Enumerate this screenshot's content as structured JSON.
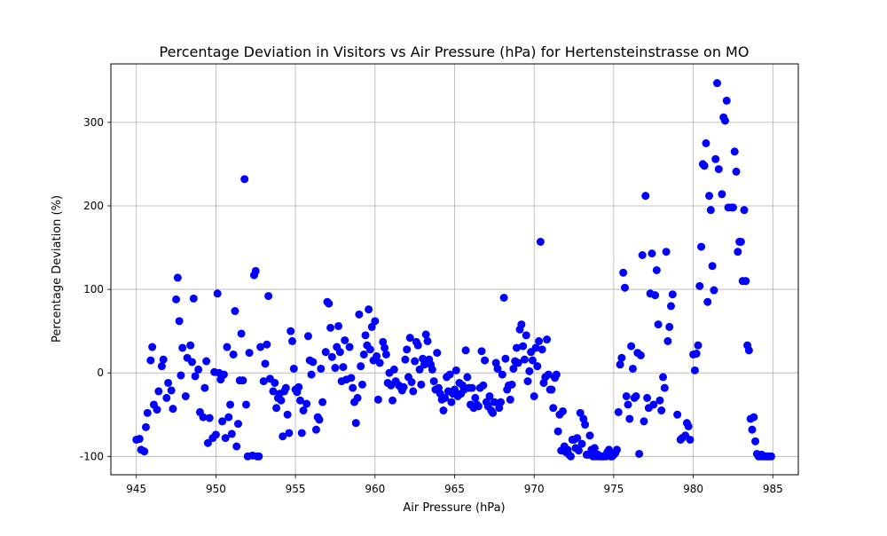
{
  "chart_data": {
    "type": "scatter",
    "title": "Percentage Deviation in Visitors vs Air Pressure (hPa) for Hertensteinstrasse on MO",
    "xlabel": "Air Pressure (hPa)",
    "ylabel": "Percentage Deviation (%)",
    "xlim": [
      943.4,
      986.6
    ],
    "ylim": [
      -122,
      370
    ],
    "xticks": [
      945,
      950,
      955,
      960,
      965,
      970,
      975,
      980,
      985
    ],
    "yticks": [
      -100,
      0,
      100,
      200,
      300
    ],
    "grid": true,
    "color": "#0000ff",
    "points": [
      [
        945.0,
        -80
      ],
      [
        945.2,
        -79
      ],
      [
        945.3,
        -92
      ],
      [
        945.5,
        -94
      ],
      [
        945.6,
        -65
      ],
      [
        945.7,
        -48
      ],
      [
        945.9,
        15
      ],
      [
        946.0,
        31
      ],
      [
        946.1,
        -38
      ],
      [
        946.3,
        -44
      ],
      [
        946.4,
        -22
      ],
      [
        946.6,
        8
      ],
      [
        946.7,
        16
      ],
      [
        946.9,
        -30
      ],
      [
        947.0,
        -12
      ],
      [
        947.2,
        -21
      ],
      [
        947.3,
        -43
      ],
      [
        947.5,
        88
      ],
      [
        947.6,
        114
      ],
      [
        947.7,
        62
      ],
      [
        947.8,
        -3
      ],
      [
        947.9,
        30
      ],
      [
        948.1,
        -28
      ],
      [
        948.2,
        18
      ],
      [
        948.4,
        33
      ],
      [
        948.5,
        13
      ],
      [
        948.6,
        89
      ],
      [
        948.7,
        -4
      ],
      [
        948.9,
        4
      ],
      [
        949.0,
        -47
      ],
      [
        949.2,
        -53
      ],
      [
        949.3,
        -18
      ],
      [
        949.4,
        14
      ],
      [
        949.5,
        -84
      ],
      [
        949.6,
        -54
      ],
      [
        949.8,
        -78
      ],
      [
        949.9,
        1
      ],
      [
        950.0,
        -74
      ],
      [
        950.1,
        95
      ],
      [
        950.2,
        0
      ],
      [
        950.3,
        -8
      ],
      [
        950.4,
        -58
      ],
      [
        950.5,
        -2
      ],
      [
        950.6,
        -78
      ],
      [
        950.7,
        31
      ],
      [
        950.8,
        -53
      ],
      [
        950.9,
        -38
      ],
      [
        951.0,
        -73
      ],
      [
        951.1,
        22
      ],
      [
        951.2,
        74
      ],
      [
        951.3,
        -88
      ],
      [
        951.4,
        -61
      ],
      [
        951.5,
        -9
      ],
      [
        951.6,
        47
      ],
      [
        951.7,
        -9
      ],
      [
        951.8,
        232
      ],
      [
        951.9,
        -38
      ],
      [
        952.0,
        -100
      ],
      [
        952.1,
        24
      ],
      [
        952.3,
        -99
      ],
      [
        952.4,
        117
      ],
      [
        952.5,
        122
      ],
      [
        952.6,
        -100
      ],
      [
        952.7,
        -100
      ],
      [
        952.8,
        31
      ],
      [
        953.0,
        -10
      ],
      [
        953.1,
        11
      ],
      [
        953.2,
        34
      ],
      [
        953.3,
        92
      ],
      [
        953.4,
        -7
      ],
      [
        953.6,
        -22
      ],
      [
        953.7,
        -12
      ],
      [
        953.8,
        -42
      ],
      [
        953.9,
        -30
      ],
      [
        954.0,
        -25
      ],
      [
        954.1,
        -33
      ],
      [
        954.2,
        -76
      ],
      [
        954.3,
        -22
      ],
      [
        954.4,
        -18
      ],
      [
        954.5,
        -50
      ],
      [
        954.6,
        -72
      ],
      [
        954.7,
        50
      ],
      [
        954.8,
        38
      ],
      [
        954.9,
        5
      ],
      [
        955.0,
        -20
      ],
      [
        955.1,
        -23
      ],
      [
        955.2,
        -17
      ],
      [
        955.3,
        -33
      ],
      [
        955.4,
        -72
      ],
      [
        955.5,
        -45
      ],
      [
        955.7,
        -37
      ],
      [
        955.8,
        44
      ],
      [
        955.9,
        15
      ],
      [
        956.0,
        -2
      ],
      [
        956.1,
        13
      ],
      [
        956.3,
        -68
      ],
      [
        956.4,
        -53
      ],
      [
        956.5,
        -56
      ],
      [
        956.6,
        5
      ],
      [
        956.7,
        -35
      ],
      [
        956.9,
        25
      ],
      [
        957.0,
        85
      ],
      [
        957.1,
        83
      ],
      [
        957.2,
        54
      ],
      [
        957.3,
        19
      ],
      [
        957.5,
        6
      ],
      [
        957.6,
        31
      ],
      [
        957.7,
        56
      ],
      [
        957.8,
        25
      ],
      [
        957.9,
        -10
      ],
      [
        958.0,
        7
      ],
      [
        958.1,
        39
      ],
      [
        958.2,
        -8
      ],
      [
        958.4,
        31
      ],
      [
        958.5,
        -6
      ],
      [
        958.6,
        -18
      ],
      [
        958.7,
        -35
      ],
      [
        958.8,
        -60
      ],
      [
        958.9,
        -30
      ],
      [
        959.0,
        70
      ],
      [
        959.1,
        8
      ],
      [
        959.2,
        -14
      ],
      [
        959.3,
        22
      ],
      [
        959.4,
        45
      ],
      [
        959.5,
        33
      ],
      [
        959.6,
        76
      ],
      [
        959.7,
        28
      ],
      [
        959.8,
        55
      ],
      [
        959.9,
        15
      ],
      [
        960.0,
        62
      ],
      [
        960.1,
        20
      ],
      [
        960.2,
        -32
      ],
      [
        960.3,
        12
      ],
      [
        960.5,
        37
      ],
      [
        960.6,
        30
      ],
      [
        960.7,
        22
      ],
      [
        960.8,
        -12
      ],
      [
        960.9,
        0
      ],
      [
        961.0,
        -15
      ],
      [
        961.1,
        -33
      ],
      [
        961.2,
        4
      ],
      [
        961.3,
        -10
      ],
      [
        961.5,
        -15
      ],
      [
        961.6,
        -17
      ],
      [
        961.7,
        -21
      ],
      [
        961.8,
        -17
      ],
      [
        961.9,
        16
      ],
      [
        962.0,
        28
      ],
      [
        962.1,
        -5
      ],
      [
        962.2,
        42
      ],
      [
        962.3,
        -11
      ],
      [
        962.4,
        -22
      ],
      [
        962.5,
        14
      ],
      [
        962.6,
        37
      ],
      [
        962.7,
        33
      ],
      [
        962.8,
        4
      ],
      [
        962.9,
        -14
      ],
      [
        963.0,
        17
      ],
      [
        963.1,
        10
      ],
      [
        963.2,
        46
      ],
      [
        963.3,
        38
      ],
      [
        963.4,
        16
      ],
      [
        963.5,
        10
      ],
      [
        963.6,
        4
      ],
      [
        963.7,
        -10
      ],
      [
        963.8,
        -20
      ],
      [
        963.9,
        24
      ],
      [
        964.0,
        -18
      ],
      [
        964.1,
        -25
      ],
      [
        964.2,
        -32
      ],
      [
        964.3,
        -45
      ],
      [
        964.4,
        -30
      ],
      [
        964.5,
        -5
      ],
      [
        964.6,
        -22
      ],
      [
        964.7,
        -2
      ],
      [
        964.8,
        -35
      ],
      [
        964.9,
        -25
      ],
      [
        965.0,
        -20
      ],
      [
        965.1,
        3
      ],
      [
        965.2,
        -28
      ],
      [
        965.3,
        -12
      ],
      [
        965.4,
        -25
      ],
      [
        965.5,
        -15
      ],
      [
        965.6,
        -20
      ],
      [
        965.7,
        27
      ],
      [
        965.8,
        -5
      ],
      [
        965.9,
        -18
      ],
      [
        966.0,
        -38
      ],
      [
        966.1,
        -18
      ],
      [
        966.2,
        -42
      ],
      [
        966.3,
        -30
      ],
      [
        966.4,
        -38
      ],
      [
        966.5,
        -40
      ],
      [
        966.6,
        -18
      ],
      [
        966.7,
        26
      ],
      [
        966.8,
        -15
      ],
      [
        966.9,
        15
      ],
      [
        967.0,
        -35
      ],
      [
        967.1,
        -40
      ],
      [
        967.2,
        -28
      ],
      [
        967.3,
        -45
      ],
      [
        967.4,
        -48
      ],
      [
        967.5,
        -35
      ],
      [
        967.6,
        12
      ],
      [
        967.7,
        5
      ],
      [
        967.8,
        -42
      ],
      [
        967.9,
        -35
      ],
      [
        968.0,
        -2
      ],
      [
        968.1,
        90
      ],
      [
        968.2,
        17
      ],
      [
        968.3,
        -20
      ],
      [
        968.4,
        -15
      ],
      [
        968.5,
        -32
      ],
      [
        968.6,
        -14
      ],
      [
        968.7,
        5
      ],
      [
        968.8,
        14
      ],
      [
        968.9,
        30
      ],
      [
        969.0,
        12
      ],
      [
        969.1,
        52
      ],
      [
        969.2,
        58
      ],
      [
        969.3,
        32
      ],
      [
        969.4,
        16
      ],
      [
        969.5,
        45
      ],
      [
        969.6,
        -10
      ],
      [
        969.7,
        2
      ],
      [
        969.8,
        25
      ],
      [
        969.9,
        15
      ],
      [
        970.0,
        -28
      ],
      [
        970.1,
        30
      ],
      [
        970.2,
        8
      ],
      [
        970.3,
        38
      ],
      [
        970.4,
        157
      ],
      [
        970.5,
        28
      ],
      [
        970.6,
        -12
      ],
      [
        970.7,
        -5
      ],
      [
        970.8,
        40
      ],
      [
        970.9,
        -2
      ],
      [
        971.0,
        -20
      ],
      [
        971.1,
        -20
      ],
      [
        971.2,
        -42
      ],
      [
        971.3,
        -6
      ],
      [
        971.4,
        -2
      ],
      [
        971.5,
        -70
      ],
      [
        971.6,
        -50
      ],
      [
        971.7,
        -93
      ],
      [
        971.8,
        -46
      ],
      [
        971.9,
        -88
      ],
      [
        972.0,
        -95
      ],
      [
        972.1,
        -92
      ],
      [
        972.2,
        -98
      ],
      [
        972.3,
        -100
      ],
      [
        972.4,
        -80
      ],
      [
        972.5,
        -80
      ],
      [
        972.6,
        -90
      ],
      [
        972.7,
        -78
      ],
      [
        972.8,
        -93
      ],
      [
        972.9,
        -48
      ],
      [
        973.0,
        -85
      ],
      [
        973.1,
        -55
      ],
      [
        973.2,
        -62
      ],
      [
        973.3,
        -98
      ],
      [
        973.4,
        -98
      ],
      [
        973.5,
        -75
      ],
      [
        973.6,
        -92
      ],
      [
        973.7,
        -100
      ],
      [
        973.8,
        -90
      ],
      [
        973.9,
        -100
      ],
      [
        974.0,
        -98
      ],
      [
        974.1,
        -100
      ],
      [
        974.2,
        -100
      ],
      [
        974.3,
        -100
      ],
      [
        974.4,
        -100
      ],
      [
        974.5,
        -100
      ],
      [
        974.6,
        -95
      ],
      [
        974.7,
        -92
      ],
      [
        974.8,
        -100
      ],
      [
        974.9,
        -100
      ],
      [
        975.0,
        -98
      ],
      [
        975.1,
        -96
      ],
      [
        975.2,
        -92
      ],
      [
        975.3,
        -47
      ],
      [
        975.4,
        10
      ],
      [
        975.5,
        18
      ],
      [
        975.6,
        120
      ],
      [
        975.7,
        102
      ],
      [
        975.8,
        -28
      ],
      [
        975.9,
        -38
      ],
      [
        976.0,
        -55
      ],
      [
        976.1,
        32
      ],
      [
        976.2,
        5
      ],
      [
        976.3,
        -30
      ],
      [
        976.4,
        -28
      ],
      [
        976.5,
        24
      ],
      [
        976.6,
        -97
      ],
      [
        976.7,
        21
      ],
      [
        976.8,
        141
      ],
      [
        976.9,
        -58
      ],
      [
        977.0,
        212
      ],
      [
        977.1,
        -30
      ],
      [
        977.2,
        -42
      ],
      [
        977.3,
        95
      ],
      [
        977.4,
        143
      ],
      [
        977.5,
        -38
      ],
      [
        977.6,
        93
      ],
      [
        977.7,
        123
      ],
      [
        977.8,
        58
      ],
      [
        977.9,
        -33
      ],
      [
        978.0,
        -45
      ],
      [
        978.1,
        -5
      ],
      [
        978.2,
        -18
      ],
      [
        978.3,
        145
      ],
      [
        978.4,
        38
      ],
      [
        978.5,
        55
      ],
      [
        978.6,
        80
      ],
      [
        978.7,
        94
      ],
      [
        979.0,
        -50
      ],
      [
        979.2,
        -80
      ],
      [
        979.3,
        -78
      ],
      [
        979.5,
        -75
      ],
      [
        979.6,
        -60
      ],
      [
        979.7,
        -64
      ],
      [
        979.8,
        -80
      ],
      [
        980.0,
        22
      ],
      [
        980.1,
        3
      ],
      [
        980.2,
        23
      ],
      [
        980.3,
        33
      ],
      [
        980.4,
        104
      ],
      [
        980.5,
        151
      ],
      [
        980.6,
        250
      ],
      [
        980.7,
        248
      ],
      [
        980.8,
        275
      ],
      [
        980.9,
        85
      ],
      [
        981.0,
        212
      ],
      [
        981.1,
        195
      ],
      [
        981.2,
        128
      ],
      [
        981.3,
        99
      ],
      [
        981.4,
        256
      ],
      [
        981.5,
        347
      ],
      [
        981.6,
        244
      ],
      [
        981.8,
        214
      ],
      [
        981.9,
        306
      ],
      [
        982.0,
        302
      ],
      [
        982.1,
        326
      ],
      [
        982.2,
        198
      ],
      [
        982.4,
        198
      ],
      [
        982.5,
        198
      ],
      [
        982.6,
        265
      ],
      [
        982.7,
        241
      ],
      [
        982.8,
        145
      ],
      [
        982.9,
        157
      ],
      [
        983.0,
        157
      ],
      [
        983.1,
        110
      ],
      [
        983.2,
        195
      ],
      [
        983.3,
        110
      ],
      [
        983.4,
        33
      ],
      [
        983.5,
        27
      ],
      [
        983.6,
        -55
      ],
      [
        983.7,
        -68
      ],
      [
        983.8,
        -53
      ],
      [
        983.9,
        -82
      ],
      [
        984.0,
        -97
      ],
      [
        984.1,
        -100
      ],
      [
        984.2,
        -100
      ],
      [
        984.3,
        -98
      ],
      [
        984.4,
        -100
      ],
      [
        984.5,
        -100
      ],
      [
        984.6,
        -100
      ],
      [
        984.7,
        -100
      ],
      [
        984.8,
        -100
      ],
      [
        984.9,
        -100
      ]
    ]
  }
}
